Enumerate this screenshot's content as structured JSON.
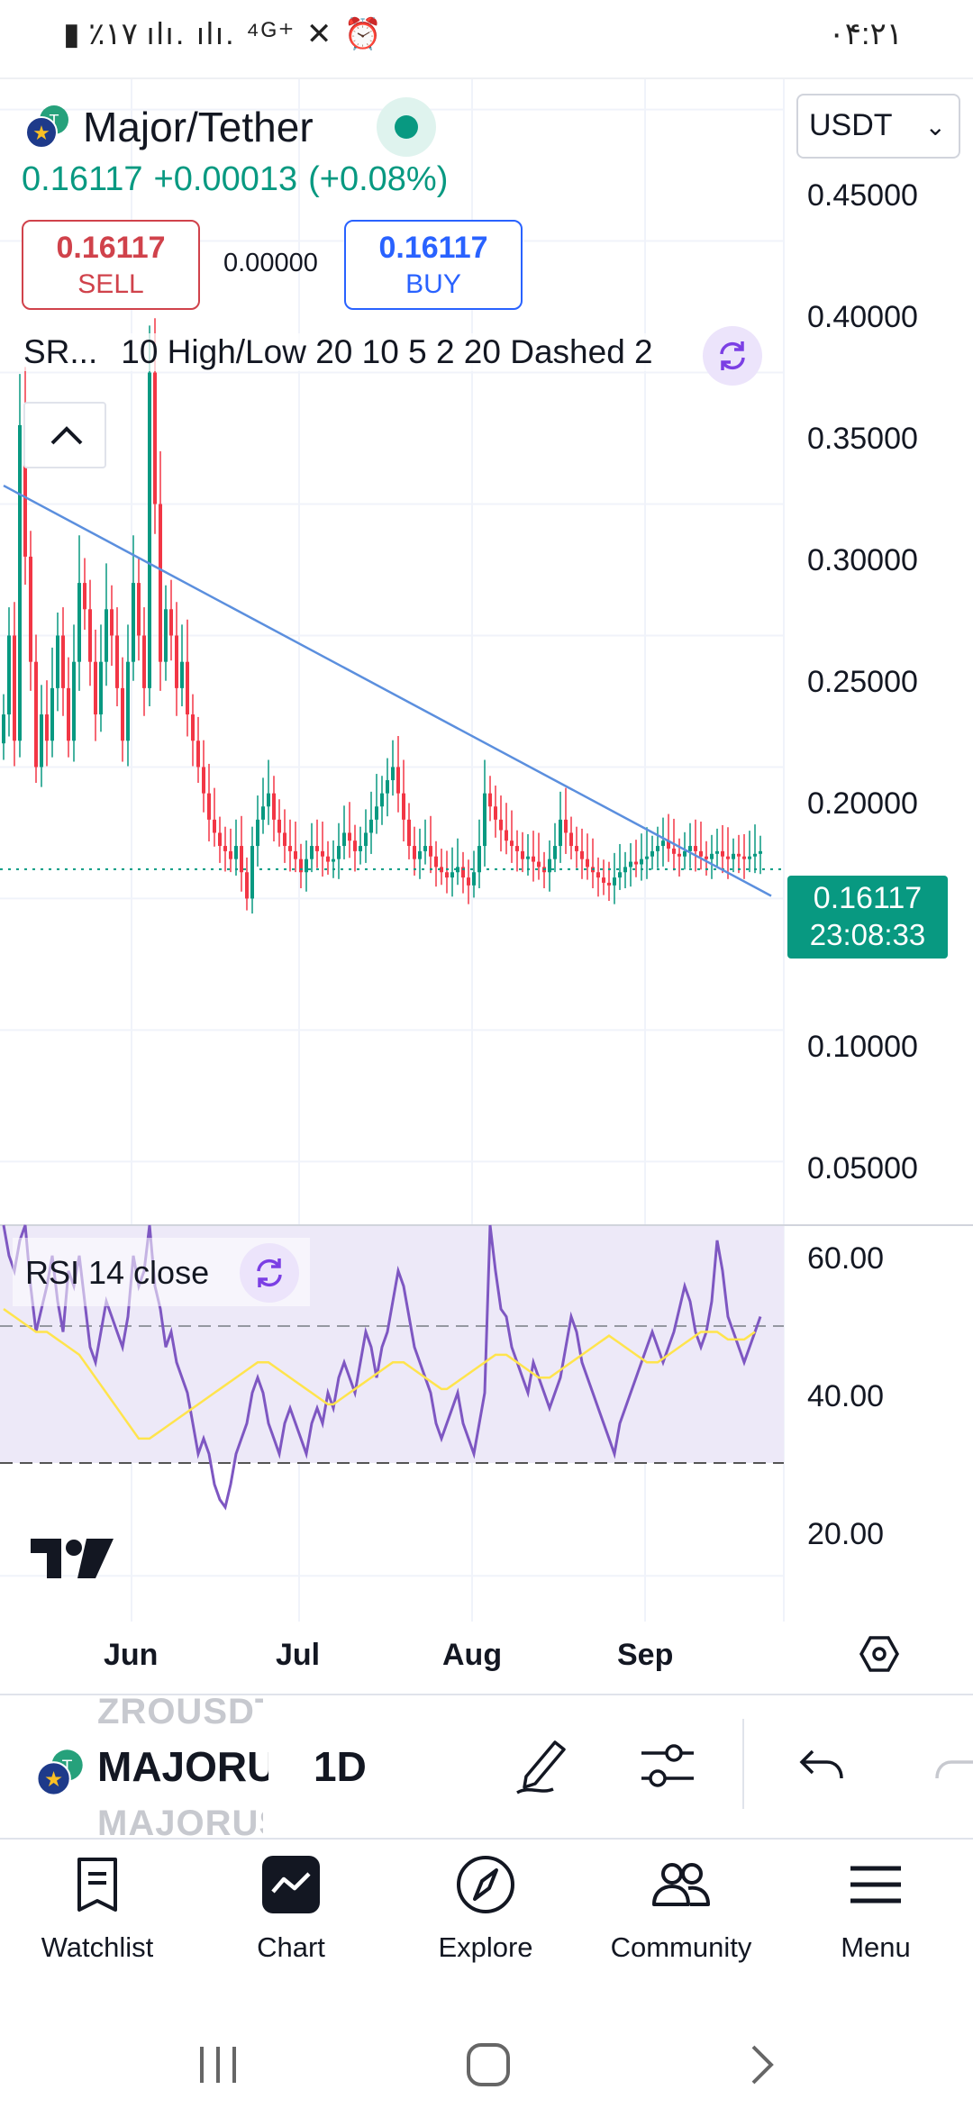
{
  "status_bar": {
    "left_text": "▮ ٪۱۷ ıl‌ı. ıl‌ı. ⁴ᴳ⁺ ✕ ⏰",
    "time": "۰۴:۲۱"
  },
  "header": {
    "title": "Major/Tether",
    "currency": "USDT",
    "price": "0.16117",
    "change": "+0.00013",
    "change_pct": "(+0.08%)"
  },
  "trade": {
    "sell_price": "0.16117",
    "sell_label": "SELL",
    "spread": "0.00000",
    "buy_price": "0.16117",
    "buy_label": "BUY"
  },
  "indicator": {
    "name": "SR...",
    "params": "10 High/Low 20 10 5 2 20 Dashed 2"
  },
  "rsi": {
    "label": "RSI 14 close"
  },
  "price_tag": {
    "value": "0.16117",
    "countdown": "23:08:33"
  },
  "chart_data": {
    "type": "candlestick",
    "y_ticks": [
      "0.45000",
      "0.40000",
      "0.35000",
      "0.30000",
      "0.25000",
      "0.20000",
      "0.10000",
      "0.05000"
    ],
    "ylim": [
      0.0265,
      0.4615
    ],
    "rsi_ticks": [
      "60.00",
      "40.00",
      "20.00"
    ],
    "rsi_ylim": [
      14,
      66
    ],
    "rsi_band": [
      30,
      50
    ],
    "x_ticks": [
      "Jun",
      "Jul",
      "Aug",
      "Sep"
    ],
    "last_price": 0.16117,
    "trendline": [
      [
        0,
        0.307
      ],
      [
        142,
        0.151
      ]
    ],
    "closes": [
      0.22,
      0.25,
      0.21,
      0.33,
      0.28,
      0.24,
      0.2,
      0.22,
      0.21,
      0.23,
      0.25,
      0.23,
      0.21,
      0.24,
      0.27,
      0.26,
      0.24,
      0.22,
      0.24,
      0.26,
      0.25,
      0.23,
      0.21,
      0.24,
      0.27,
      0.25,
      0.23,
      0.35,
      0.3,
      0.24,
      0.26,
      0.25,
      0.23,
      0.24,
      0.22,
      0.21,
      0.2,
      0.19,
      0.18,
      0.175,
      0.17,
      0.168,
      0.165,
      0.17,
      0.16,
      0.15,
      0.17,
      0.18,
      0.185,
      0.19,
      0.18,
      0.175,
      0.17,
      0.168,
      0.165,
      0.16,
      0.165,
      0.17,
      0.168,
      0.166,
      0.164,
      0.165,
      0.17,
      0.175,
      0.172,
      0.168,
      0.17,
      0.175,
      0.18,
      0.185,
      0.19,
      0.195,
      0.2,
      0.19,
      0.18,
      0.17,
      0.165,
      0.168,
      0.17,
      0.166,
      0.162,
      0.16,
      0.158,
      0.16,
      0.162,
      0.158,
      0.155,
      0.16,
      0.17,
      0.19,
      0.185,
      0.18,
      0.176,
      0.172,
      0.17,
      0.168,
      0.165,
      0.166,
      0.164,
      0.162,
      0.16,
      0.165,
      0.17,
      0.18,
      0.175,
      0.17,
      0.168,
      0.165,
      0.162,
      0.16,
      0.158,
      0.156,
      0.155,
      0.158,
      0.16,
      0.162,
      0.164,
      0.163,
      0.165,
      0.166,
      0.168,
      0.17,
      0.172,
      0.169,
      0.167,
      0.166,
      0.168,
      0.17,
      0.168,
      0.166,
      0.165,
      0.167,
      0.168,
      0.166,
      0.165,
      0.167,
      0.166,
      0.165,
      0.166,
      0.167,
      0.168
    ],
    "rsi": [
      66,
      62,
      60,
      64,
      66,
      58,
      52,
      55,
      58,
      62,
      56,
      52,
      60,
      58,
      62,
      56,
      50,
      48,
      52,
      56,
      54,
      52,
      50,
      54,
      62,
      58,
      60,
      66,
      58,
      55,
      50,
      52,
      48,
      46,
      44,
      40,
      36,
      38,
      36,
      32,
      30,
      29,
      32,
      36,
      38,
      40,
      44,
      46,
      44,
      40,
      38,
      36,
      40,
      42,
      40,
      38,
      36,
      40,
      42,
      40,
      44,
      42,
      46,
      48,
      46,
      44,
      48,
      52,
      50,
      46,
      50,
      52,
      56,
      60,
      58,
      54,
      50,
      48,
      46,
      44,
      40,
      38,
      40,
      42,
      44,
      40,
      38,
      36,
      40,
      44,
      66,
      60,
      55,
      54,
      50,
      48,
      46,
      44,
      48,
      46,
      44,
      42,
      44,
      46,
      50,
      54,
      52,
      48,
      46,
      44,
      42,
      40,
      38,
      36,
      40,
      42,
      44,
      46,
      48,
      50,
      52,
      50,
      48,
      50,
      52,
      55,
      58,
      56,
      52,
      50,
      52,
      56,
      64,
      60,
      54,
      52,
      50,
      48,
      50,
      52,
      54
    ],
    "rsi_ma": [
      55,
      54.5,
      54,
      53.5,
      53,
      52.5,
      52,
      52,
      52,
      51.5,
      51,
      50.5,
      50,
      49.5,
      49,
      48,
      47,
      46,
      45,
      44,
      43,
      42,
      41,
      40,
      39,
      38,
      38,
      38,
      38.5,
      39,
      39.5,
      40,
      40.5,
      41,
      41.5,
      42,
      42.5,
      43,
      43.5,
      44,
      44.5,
      45,
      45.5,
      46,
      46.5,
      47,
      47.5,
      48,
      48,
      48,
      47.5,
      47,
      46.5,
      46,
      45.5,
      45,
      44.5,
      44,
      43.5,
      43,
      42.5,
      42.5,
      43,
      43.5,
      44,
      44.5,
      45,
      45.5,
      46,
      46.5,
      47,
      47.5,
      48,
      48,
      48,
      47.5,
      47,
      46.5,
      46,
      45.5,
      45,
      44.5,
      44.5,
      45,
      45.5,
      46,
      46.5,
      47,
      47.5,
      48,
      48.5,
      49,
      49,
      49,
      48.5,
      48,
      47.5,
      47,
      46.5,
      46,
      46,
      46,
      46.5,
      47,
      47.5,
      48,
      48.5,
      49,
      49.5,
      50,
      50.5,
      51,
      51.5,
      51,
      50.5,
      50,
      49.5,
      49,
      48.5,
      48,
      48,
      48,
      48.5,
      49,
      49.5,
      50,
      50.5,
      51,
      51.5,
      52,
      52,
      52,
      52,
      51.5,
      51,
      51,
      51,
      51,
      51.5,
      52
    ]
  },
  "toolbar": {
    "ghost_above": "ZROUSDT",
    "symbol": "MAJORUSDT",
    "ghost_below": "MAJORUSDT",
    "interval": "1D"
  },
  "nav": {
    "watchlist": "Watchlist",
    "chart": "Chart",
    "explore": "Explore",
    "community": "Community",
    "menu": "Menu"
  },
  "colors": {
    "up": "#089981",
    "down": "#f23645",
    "rsi": "#7e57c2",
    "rsi_ma": "#ffeb3b",
    "trendline": "#5b8fde"
  }
}
